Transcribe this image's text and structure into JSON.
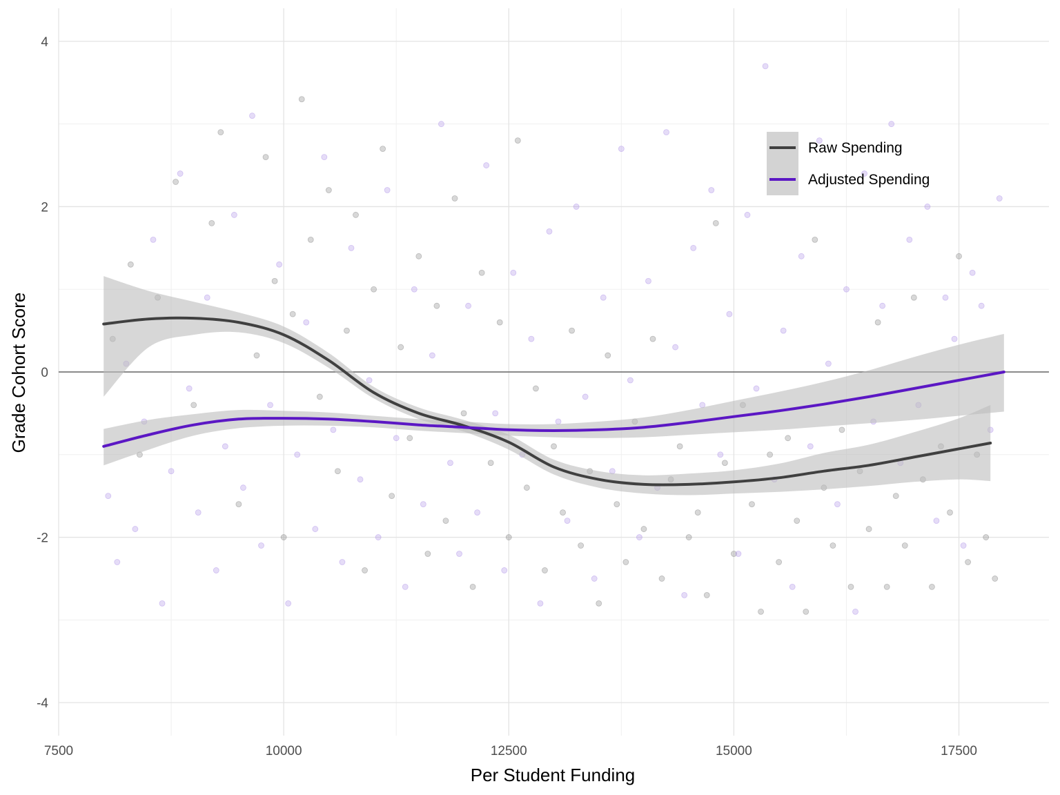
{
  "chart_data": {
    "type": "scatter",
    "title": "",
    "xlabel": "Per Student Funding",
    "ylabel": "Grade Cohort Score",
    "xlim": [
      7500,
      18500
    ],
    "ylim": [
      -4.4,
      4.4
    ],
    "x_ticks": [
      {
        "value": 7500,
        "label": "7500"
      },
      {
        "value": 10000,
        "label": "10000"
      },
      {
        "value": 12500,
        "label": "12500"
      },
      {
        "value": 15000,
        "label": "15000"
      },
      {
        "value": 17500,
        "label": "17500"
      }
    ],
    "y_ticks": [
      {
        "value": -4,
        "label": "-4"
      },
      {
        "value": -2,
        "label": "-2"
      },
      {
        "value": 0,
        "label": "0"
      },
      {
        "value": 2,
        "label": "2"
      },
      {
        "value": 4,
        "label": "4"
      }
    ],
    "x_minor": [
      8750,
      11250,
      13750,
      16250
    ],
    "y_minor": [
      -3,
      -1,
      1,
      3
    ],
    "grid": true,
    "reference_line": {
      "y": 0,
      "color": "#666666"
    },
    "legend": {
      "position": "top-right",
      "entries": [
        {
          "label": "Raw Spending",
          "color": "#404040"
        },
        {
          "label": "Adjusted Spending",
          "color": "#5b17c4"
        }
      ]
    },
    "series": [
      {
        "name": "Raw Spending",
        "kind": "smooth",
        "color": "#404040",
        "point_color": "#7f7f7f",
        "x": [
          8000,
          8500,
          9000,
          9500,
          10000,
          10500,
          11000,
          11500,
          12000,
          12500,
          13000,
          13500,
          14000,
          14500,
          15000,
          15500,
          16000,
          16500,
          17000,
          17500,
          17850
        ],
        "y": [
          0.58,
          0.64,
          0.65,
          0.6,
          0.45,
          0.14,
          -0.25,
          -0.5,
          -0.65,
          -0.85,
          -1.15,
          -1.3,
          -1.36,
          -1.36,
          -1.33,
          -1.28,
          -1.2,
          -1.13,
          -1.03,
          -0.93,
          -0.86
        ],
        "ci_low": [
          -0.3,
          0.3,
          0.45,
          0.48,
          0.35,
          0.05,
          -0.32,
          -0.57,
          -0.72,
          -0.94,
          -1.24,
          -1.4,
          -1.47,
          -1.49,
          -1.47,
          -1.45,
          -1.42,
          -1.38,
          -1.33,
          -1.3,
          -1.32
        ],
        "ci_high": [
          1.16,
          0.98,
          0.85,
          0.72,
          0.55,
          0.23,
          -0.18,
          -0.43,
          -0.58,
          -0.76,
          -1.06,
          -1.2,
          -1.25,
          -1.23,
          -1.19,
          -1.11,
          -0.98,
          -0.88,
          -0.73,
          -0.56,
          -0.4
        ]
      },
      {
        "name": "Adjusted Spending",
        "kind": "smooth",
        "color": "#5b17c4",
        "point_color": "#a98ae6",
        "x": [
          8000,
          8500,
          9000,
          9500,
          10000,
          10500,
          11000,
          11500,
          12000,
          12500,
          13000,
          13500,
          14000,
          14500,
          15000,
          15500,
          16000,
          16500,
          17000,
          17500,
          18000
        ],
        "y": [
          -0.9,
          -0.76,
          -0.64,
          -0.57,
          -0.56,
          -0.57,
          -0.6,
          -0.64,
          -0.67,
          -0.7,
          -0.71,
          -0.7,
          -0.67,
          -0.61,
          -0.54,
          -0.47,
          -0.39,
          -0.3,
          -0.2,
          -0.1,
          0.0
        ],
        "ci_low": [
          -1.13,
          -0.94,
          -0.77,
          -0.68,
          -0.65,
          -0.65,
          -0.67,
          -0.71,
          -0.74,
          -0.77,
          -0.79,
          -0.8,
          -0.79,
          -0.76,
          -0.73,
          -0.7,
          -0.66,
          -0.62,
          -0.58,
          -0.53,
          -0.48
        ],
        "ci_high": [
          -0.69,
          -0.58,
          -0.51,
          -0.46,
          -0.47,
          -0.49,
          -0.53,
          -0.57,
          -0.6,
          -0.63,
          -0.63,
          -0.6,
          -0.55,
          -0.46,
          -0.35,
          -0.24,
          -0.12,
          0.02,
          0.18,
          0.33,
          0.46
        ]
      }
    ],
    "scatter_points": {
      "Raw Spending": [
        [
          8100,
          0.4
        ],
        [
          8300,
          1.3
        ],
        [
          8400,
          -1.0
        ],
        [
          8600,
          0.9
        ],
        [
          8800,
          2.3
        ],
        [
          9000,
          -0.4
        ],
        [
          9200,
          1.8
        ],
        [
          9300,
          2.9
        ],
        [
          9500,
          -1.6
        ],
        [
          9700,
          0.2
        ],
        [
          9800,
          2.6
        ],
        [
          9900,
          1.1
        ],
        [
          10000,
          -2.0
        ],
        [
          10100,
          0.7
        ],
        [
          10200,
          3.3
        ],
        [
          10300,
          1.6
        ],
        [
          10400,
          -0.3
        ],
        [
          10500,
          2.2
        ],
        [
          10600,
          -1.2
        ],
        [
          10700,
          0.5
        ],
        [
          10800,
          1.9
        ],
        [
          10900,
          -2.4
        ],
        [
          11000,
          1.0
        ],
        [
          11100,
          2.7
        ],
        [
          11200,
          -1.5
        ],
        [
          11300,
          0.3
        ],
        [
          11400,
          -0.8
        ],
        [
          11500,
          1.4
        ],
        [
          11600,
          -2.2
        ],
        [
          11700,
          0.8
        ],
        [
          11800,
          -1.8
        ],
        [
          11900,
          2.1
        ],
        [
          12000,
          -0.5
        ],
        [
          12100,
          -2.6
        ],
        [
          12200,
          1.2
        ],
        [
          12300,
          -1.1
        ],
        [
          12400,
          0.6
        ],
        [
          12500,
          -2.0
        ],
        [
          12600,
          2.8
        ],
        [
          12700,
          -1.4
        ],
        [
          12800,
          -0.2
        ],
        [
          12900,
          -2.4
        ],
        [
          13000,
          -0.9
        ],
        [
          13100,
          -1.7
        ],
        [
          13200,
          0.5
        ],
        [
          13300,
          -2.1
        ],
        [
          13400,
          -1.2
        ],
        [
          13500,
          -2.8
        ],
        [
          13600,
          0.2
        ],
        [
          13700,
          -1.6
        ],
        [
          13800,
          -2.3
        ],
        [
          13900,
          -0.6
        ],
        [
          14000,
          -1.9
        ],
        [
          14100,
          0.4
        ],
        [
          14200,
          -2.5
        ],
        [
          14300,
          -1.3
        ],
        [
          14400,
          -0.9
        ],
        [
          14500,
          -2.0
        ],
        [
          14600,
          -1.7
        ],
        [
          14700,
          -2.7
        ],
        [
          14800,
          1.8
        ],
        [
          14900,
          -1.1
        ],
        [
          15000,
          -2.2
        ],
        [
          15100,
          -0.4
        ],
        [
          15200,
          -1.6
        ],
        [
          15300,
          -2.9
        ],
        [
          15400,
          -1.0
        ],
        [
          15500,
          -2.3
        ],
        [
          15600,
          -0.8
        ],
        [
          15700,
          -1.8
        ],
        [
          15800,
          -2.9
        ],
        [
          15900,
          1.6
        ],
        [
          16000,
          -1.4
        ],
        [
          16100,
          -2.1
        ],
        [
          16200,
          -0.7
        ],
        [
          16300,
          -2.6
        ],
        [
          16400,
          -1.2
        ],
        [
          16500,
          -1.9
        ],
        [
          16600,
          0.6
        ],
        [
          16700,
          -2.6
        ],
        [
          16800,
          -1.5
        ],
        [
          16900,
          -2.1
        ],
        [
          17000,
          0.9
        ],
        [
          17100,
          -1.3
        ],
        [
          17200,
          -2.6
        ],
        [
          17300,
          -0.9
        ],
        [
          17400,
          -1.7
        ],
        [
          17500,
          1.4
        ],
        [
          17600,
          -2.3
        ],
        [
          17700,
          -1.0
        ],
        [
          17800,
          -2.0
        ],
        [
          17900,
          -2.5
        ]
      ],
      "Adjusted Spending": [
        [
          8050,
          -1.5
        ],
        [
          8150,
          -2.3
        ],
        [
          8250,
          0.1
        ],
        [
          8350,
          -1.9
        ],
        [
          8450,
          -0.6
        ],
        [
          8550,
          1.6
        ],
        [
          8650,
          -2.8
        ],
        [
          8750,
          -1.2
        ],
        [
          8850,
          2.4
        ],
        [
          8950,
          -0.2
        ],
        [
          9050,
          -1.7
        ],
        [
          9150,
          0.9
        ],
        [
          9250,
          -2.4
        ],
        [
          9350,
          -0.9
        ],
        [
          9450,
          1.9
        ],
        [
          9550,
          -1.4
        ],
        [
          9650,
          3.1
        ],
        [
          9750,
          -2.1
        ],
        [
          9850,
          -0.4
        ],
        [
          9950,
          1.3
        ],
        [
          10050,
          -2.8
        ],
        [
          10150,
          -1.0
        ],
        [
          10250,
          0.6
        ],
        [
          10350,
          -1.9
        ],
        [
          10450,
          2.6
        ],
        [
          10550,
          -0.7
        ],
        [
          10650,
          -2.3
        ],
        [
          10750,
          1.5
        ],
        [
          10850,
          -1.3
        ],
        [
          10950,
          -0.1
        ],
        [
          11050,
          -2.0
        ],
        [
          11150,
          2.2
        ],
        [
          11250,
          -0.8
        ],
        [
          11350,
          -2.6
        ],
        [
          11450,
          1.0
        ],
        [
          11550,
          -1.6
        ],
        [
          11650,
          0.2
        ],
        [
          11750,
          3.0
        ],
        [
          11850,
          -1.1
        ],
        [
          11950,
          -2.2
        ],
        [
          12050,
          0.8
        ],
        [
          12150,
          -1.7
        ],
        [
          12250,
          2.5
        ],
        [
          12350,
          -0.5
        ],
        [
          12450,
          -2.4
        ],
        [
          12550,
          1.2
        ],
        [
          12650,
          -1.0
        ],
        [
          12750,
          0.4
        ],
        [
          12850,
          -2.8
        ],
        [
          12950,
          1.7
        ],
        [
          13050,
          -0.6
        ],
        [
          13150,
          -1.8
        ],
        [
          13250,
          2.0
        ],
        [
          13350,
          -0.3
        ],
        [
          13450,
          -2.5
        ],
        [
          13550,
          0.9
        ],
        [
          13650,
          -1.2
        ],
        [
          13750,
          2.7
        ],
        [
          13850,
          -0.1
        ],
        [
          13950,
          -2.0
        ],
        [
          14050,
          1.1
        ],
        [
          14150,
          -1.4
        ],
        [
          14250,
          2.9
        ],
        [
          14350,
          0.3
        ],
        [
          14450,
          -2.7
        ],
        [
          14550,
          1.5
        ],
        [
          14650,
          -0.4
        ],
        [
          14750,
          2.2
        ],
        [
          14850,
          -1.0
        ],
        [
          14950,
          0.7
        ],
        [
          15050,
          -2.2
        ],
        [
          15150,
          1.9
        ],
        [
          15250,
          -0.2
        ],
        [
          15350,
          3.7
        ],
        [
          15450,
          -1.3
        ],
        [
          15550,
          0.5
        ],
        [
          15650,
          -2.6
        ],
        [
          15750,
          1.4
        ],
        [
          15850,
          -0.9
        ],
        [
          15950,
          2.8
        ],
        [
          16050,
          0.1
        ],
        [
          16150,
          -1.6
        ],
        [
          16250,
          1.0
        ],
        [
          16350,
          -2.9
        ],
        [
          16450,
          2.4
        ],
        [
          16550,
          -0.6
        ],
        [
          16650,
          0.8
        ],
        [
          16750,
          3.0
        ],
        [
          16850,
          -1.1
        ],
        [
          16950,
          1.6
        ],
        [
          17050,
          -0.4
        ],
        [
          17150,
          2.0
        ],
        [
          17250,
          -1.8
        ],
        [
          17350,
          0.9
        ],
        [
          17450,
          0.4
        ],
        [
          17550,
          -2.1
        ],
        [
          17650,
          1.2
        ],
        [
          17750,
          0.8
        ],
        [
          17850,
          -0.7
        ],
        [
          17950,
          2.1
        ]
      ]
    }
  }
}
